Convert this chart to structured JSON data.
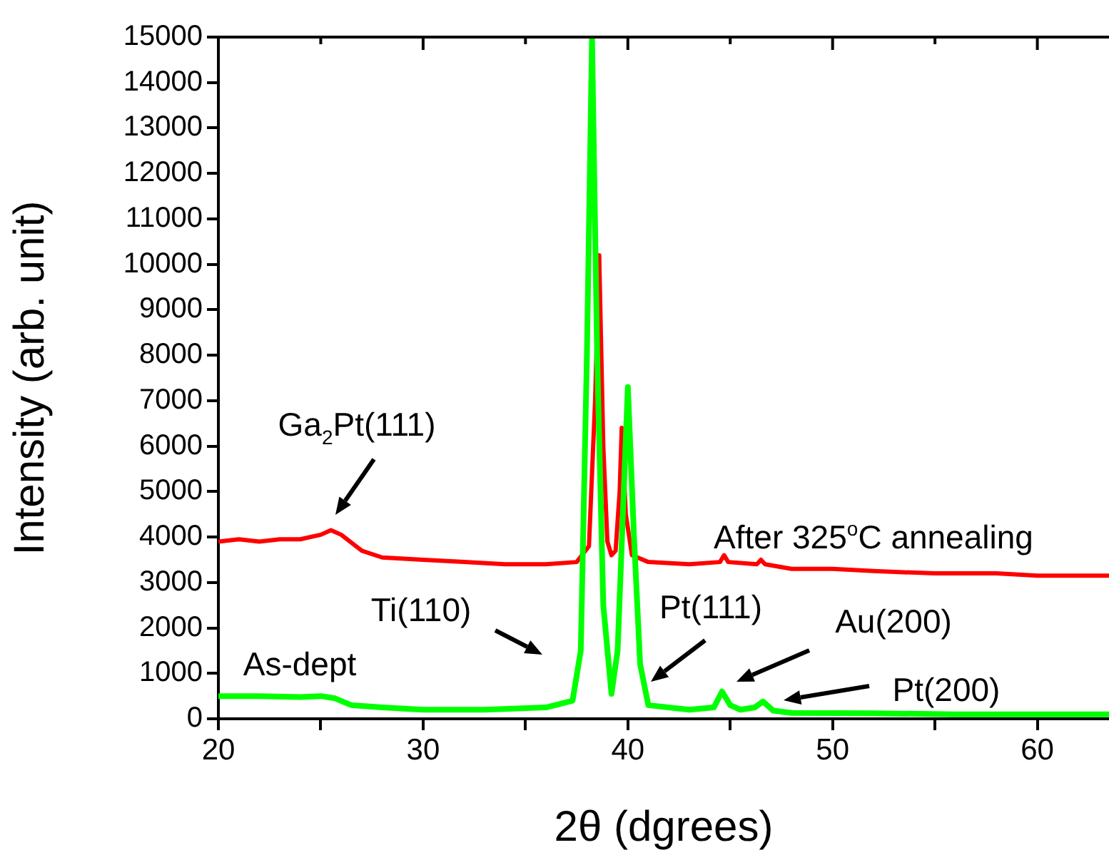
{
  "chart_data": {
    "type": "line",
    "xlabel": "2θ (dgrees)",
    "ylabel": "Intensity (arb. unit)",
    "xlim": [
      20,
      63.5
    ],
    "xticks": [
      20,
      {
        "value": 25,
        "label": null
      },
      30,
      {
        "value": 35,
        "label": null
      },
      40,
      {
        "value": 45,
        "label": null
      },
      50,
      {
        "value": 55,
        "label": null
      },
      60
    ],
    "ylim": [
      0,
      15000
    ],
    "yticks": [
      0,
      1000,
      2000,
      3000,
      4000,
      5000,
      6000,
      7000,
      8000,
      9000,
      10000,
      11000,
      12000,
      13000,
      14000,
      15000
    ],
    "series": [
      {
        "name": "After 325$^{o}$C annealing",
        "color": "#ff0000",
        "x": [
          20,
          21,
          22,
          23,
          24,
          25,
          25.5,
          26,
          27,
          28,
          30,
          32,
          34,
          36,
          37.5,
          38.1,
          38.4,
          38.6,
          38.8,
          39.0,
          39.2,
          39.4,
          39.6,
          39.7,
          39.9,
          40.2,
          41,
          43,
          44.5,
          44.7,
          44.9,
          46.3,
          46.5,
          46.7,
          48,
          50,
          52,
          55,
          58,
          60,
          63.5
        ],
        "values": [
          3900,
          3950,
          3900,
          3950,
          3950,
          4050,
          4150,
          4050,
          3700,
          3550,
          3500,
          3450,
          3400,
          3400,
          3450,
          3800,
          7000,
          10200,
          6000,
          3900,
          3600,
          3700,
          5000,
          6400,
          4500,
          3600,
          3450,
          3400,
          3450,
          3600,
          3450,
          3400,
          3500,
          3400,
          3300,
          3300,
          3250,
          3200,
          3200,
          3150,
          3150
        ]
      },
      {
        "name": "As-dept",
        "color": "#00ff00",
        "x": [
          20,
          22,
          24,
          25,
          25.7,
          26.5,
          28,
          30,
          33,
          36,
          37.3,
          37.7,
          38.0,
          38.25,
          38.5,
          38.8,
          39.2,
          39.5,
          39.8,
          40.0,
          40.3,
          40.6,
          41,
          43,
          44.2,
          44.6,
          45.0,
          45.5,
          46.2,
          46.6,
          47.1,
          48,
          52,
          56,
          60,
          63.5
        ],
        "values": [
          500,
          500,
          480,
          500,
          450,
          300,
          250,
          200,
          200,
          250,
          400,
          1500,
          8000,
          15000,
          8000,
          2500,
          550,
          1500,
          5000,
          7300,
          4000,
          1200,
          300,
          200,
          250,
          600,
          300,
          200,
          250,
          380,
          180,
          130,
          120,
          100,
          100,
          100
        ]
      }
    ],
    "annotations": [
      "Ga$_{2}$Pt(111)",
      "Ti(110)",
      "Pt(111)",
      "Au(200)",
      "Pt(200)"
    ]
  }
}
